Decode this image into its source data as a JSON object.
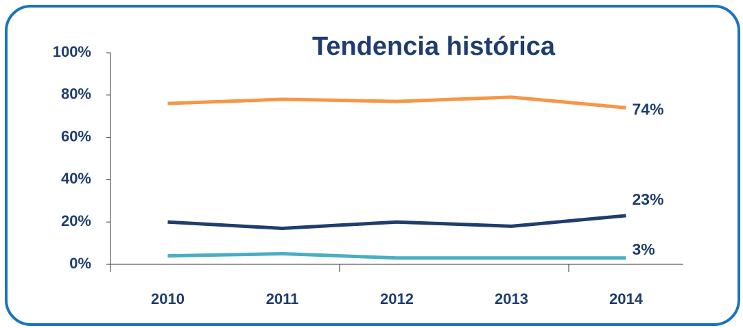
{
  "chart_data": {
    "type": "line",
    "title": "Tendencia histórica",
    "categories": [
      "2010",
      "2011",
      "2012",
      "2013",
      "2014"
    ],
    "series": [
      {
        "color": "#f79646",
        "values": [
          76,
          78,
          77,
          79,
          74
        ],
        "value_labels": [
          null,
          null,
          null,
          null,
          "74%"
        ]
      },
      {
        "color": "#1f3d6e",
        "values": [
          20,
          17,
          20,
          18,
          23
        ],
        "value_labels": [
          null,
          null,
          null,
          null,
          "23%"
        ]
      },
      {
        "color": "#4bacc6",
        "values": [
          4,
          5,
          3,
          3,
          3
        ],
        "value_labels": [
          null,
          null,
          null,
          null,
          "3%"
        ]
      }
    ],
    "ylim": [
      0,
      100
    ],
    "yticks": [
      {
        "value": 0,
        "label": "0%"
      },
      {
        "value": 20,
        "label": "20%"
      },
      {
        "value": 40,
        "label": "40%"
      },
      {
        "value": 60,
        "label": "60%"
      },
      {
        "value": 80,
        "label": "80%"
      },
      {
        "value": 100,
        "label": "100%"
      }
    ]
  }
}
